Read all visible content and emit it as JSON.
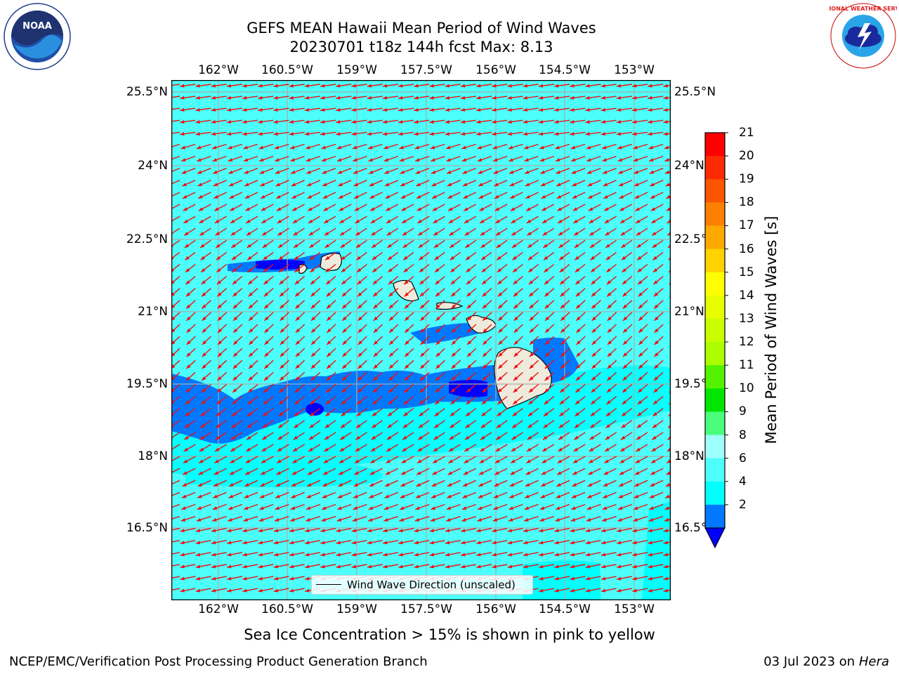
{
  "header": {
    "title_line1": "GEFS MEAN Hawaii Mean Period of Wind Waves",
    "title_line2": "20230701 t18z 144h fcst   Max: 8.13"
  },
  "logos": {
    "left": {
      "name": "noaa-logo",
      "text": "NOAA"
    },
    "right": {
      "name": "nws-logo",
      "text": "NATIONAL WEATHER SERVICE"
    }
  },
  "map": {
    "lon_ticks": [
      "162°W",
      "160.5°W",
      "159°W",
      "157.5°W",
      "156°W",
      "154.5°W",
      "153°W"
    ],
    "lat_ticks": [
      "25.5°N",
      "24°N",
      "22.5°N",
      "21°N",
      "19.5°N",
      "18°N",
      "16.5°N"
    ],
    "lon_range": [
      -163,
      -152.3
    ],
    "lat_range": [
      15.2,
      25.8
    ],
    "legend_label": "Wind Wave Direction (unscaled)",
    "arrow_color": "#ee1010",
    "land_color": "#efebdc",
    "grid_color": "#aaaaaa"
  },
  "colorbar": {
    "title": "Mean Period of Wind Waves [s]",
    "labels": [
      "21",
      "20",
      "19",
      "18",
      "17",
      "16",
      "15",
      "14",
      "13",
      "12",
      "11",
      "10",
      "9",
      "8",
      "6",
      "4",
      "2"
    ],
    "colors": [
      "#fe0000",
      "#fc2a00",
      "#fc5500",
      "#fd8000",
      "#fea900",
      "#ffd300",
      "#fffe00",
      "#e6fe00",
      "#cafd00",
      "#abfd00",
      "#53f200",
      "#00e600",
      "#4afe7d",
      "#9ffffd",
      "#4dfffa",
      "#00fffd",
      "#0078ff"
    ],
    "under_color": "#0000fe"
  },
  "footer": {
    "sea_ice_note": "Sea Ice Concentration > 15% is shown in pink to yellow",
    "left": "NCEP/EMC/Verification Post Processing Product Generation Branch",
    "right_date": "03 Jul 2023 on ",
    "right_host": "Hera"
  }
}
